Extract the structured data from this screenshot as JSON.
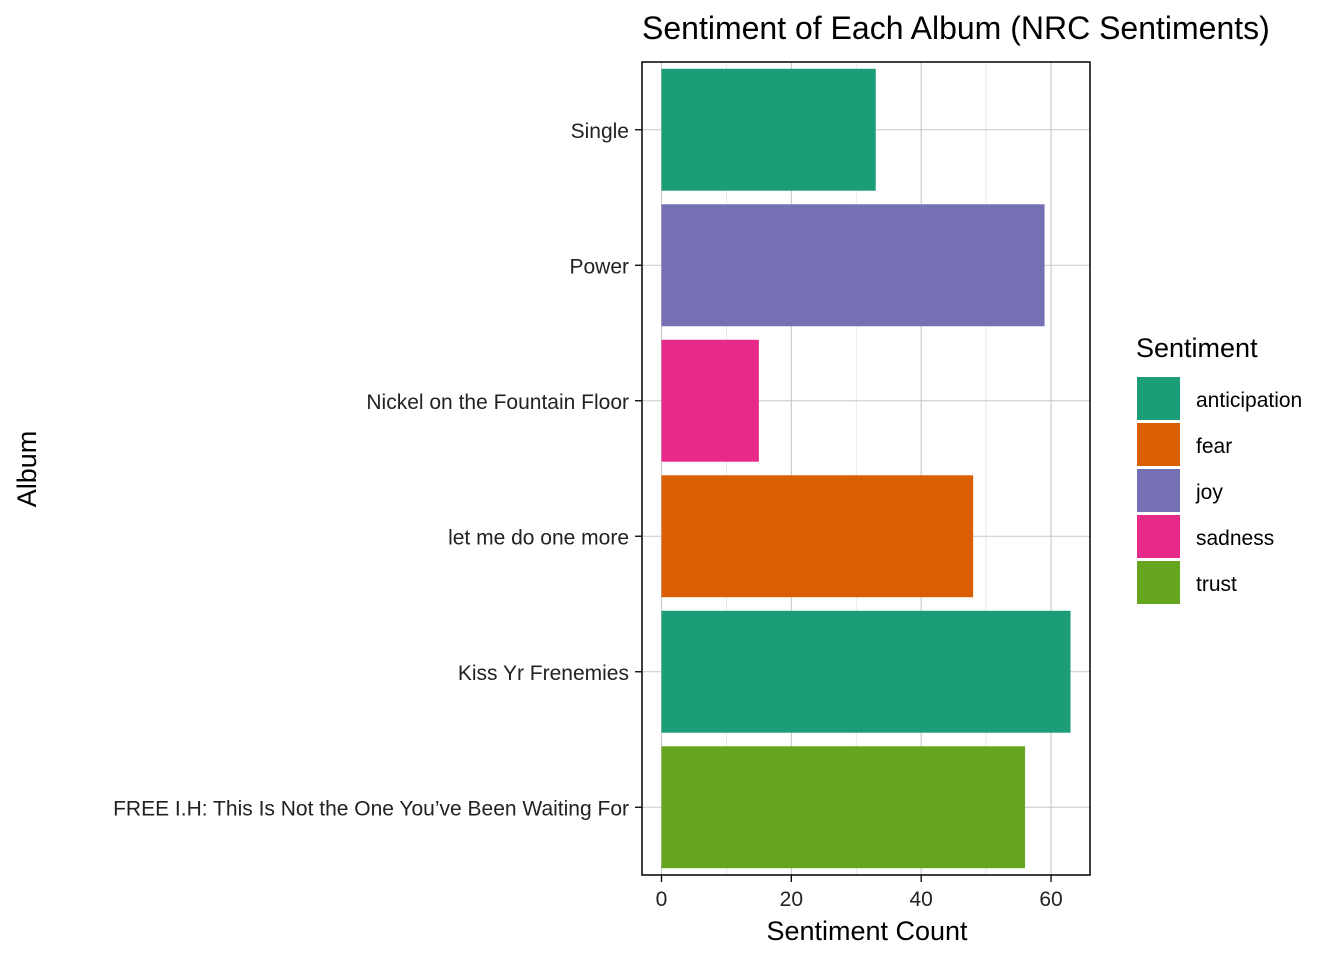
{
  "chart_data": {
    "type": "bar",
    "orientation": "horizontal",
    "title": "Sentiment of Each Album (NRC Sentiments)",
    "xlabel": "Sentiment Count",
    "ylabel": "Album",
    "xlim": [
      -3,
      66
    ],
    "x_ticks": [
      0,
      20,
      40,
      60
    ],
    "x_tick_labels": [
      "0",
      "20",
      "40",
      "60"
    ],
    "grid": true,
    "legend_position": "right",
    "legend_title": "Sentiment",
    "categories": [
      "FREE I.H: This Is Not the One You’ve Been Waiting For",
      "Kiss Yr Frenemies",
      "let me do one more",
      "Nickel on the Fountain Floor",
      "Power",
      "Single"
    ],
    "values": [
      56,
      63,
      48,
      15,
      59,
      33
    ],
    "bar_sentiment": [
      "trust",
      "anticipation",
      "fear",
      "sadness",
      "joy",
      "anticipation"
    ],
    "legend": [
      {
        "label": "anticipation",
        "color": "#1B9E77"
      },
      {
        "label": "fear",
        "color": "#D95F02"
      },
      {
        "label": "joy",
        "color": "#7570B3"
      },
      {
        "label": "sadness",
        "color": "#E7298A"
      },
      {
        "label": "trust",
        "color": "#66A61E"
      }
    ]
  }
}
